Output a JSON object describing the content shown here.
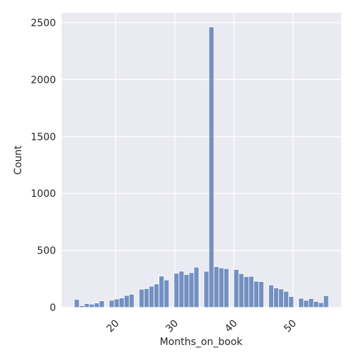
{
  "chart_data": {
    "type": "histogram",
    "xlabel": "Months_on_book",
    "ylabel": "Count",
    "bins": [
      13,
      13.843,
      14.686,
      15.529,
      16.373,
      17.216,
      18.059,
      18.902,
      19.745,
      20.588,
      21.431,
      22.275,
      23.118,
      23.961,
      24.804,
      25.647,
      26.49,
      27.333,
      28.176,
      29.02,
      29.863,
      30.706,
      31.549,
      32.392,
      33.235,
      34.078,
      34.922,
      35.765,
      36.608,
      37.451,
      38.294,
      39.137,
      39.98,
      40.824,
      41.667,
      42.51,
      43.353,
      44.196,
      45.039,
      45.882,
      46.725,
      47.569,
      48.412,
      49.255,
      50.098,
      50.941,
      51.784,
      52.627,
      53.471,
      54.314,
      55.157,
      56
    ],
    "values": [
      70,
      16,
      34,
      29,
      39,
      58,
      0,
      63,
      74,
      83,
      105,
      116,
      0,
      160,
      165,
      186,
      206,
      275,
      241,
      0,
      300,
      318,
      289,
      305,
      353,
      0,
      317,
      2463,
      358,
      347,
      341,
      0,
      333,
      297,
      271,
      273,
      230,
      227,
      0,
      197,
      171,
      162,
      141,
      96,
      0,
      80,
      62,
      78,
      53,
      42,
      103
    ],
    "color": "#4c72b0",
    "xlim": [
      10.85,
      58.15
    ],
    "xticks": [
      20,
      30,
      40,
      50
    ],
    "ylim": [
      0,
      2587
    ],
    "yticks": [
      0,
      500,
      1000,
      1500,
      2000,
      2500
    ],
    "grid": true
  }
}
